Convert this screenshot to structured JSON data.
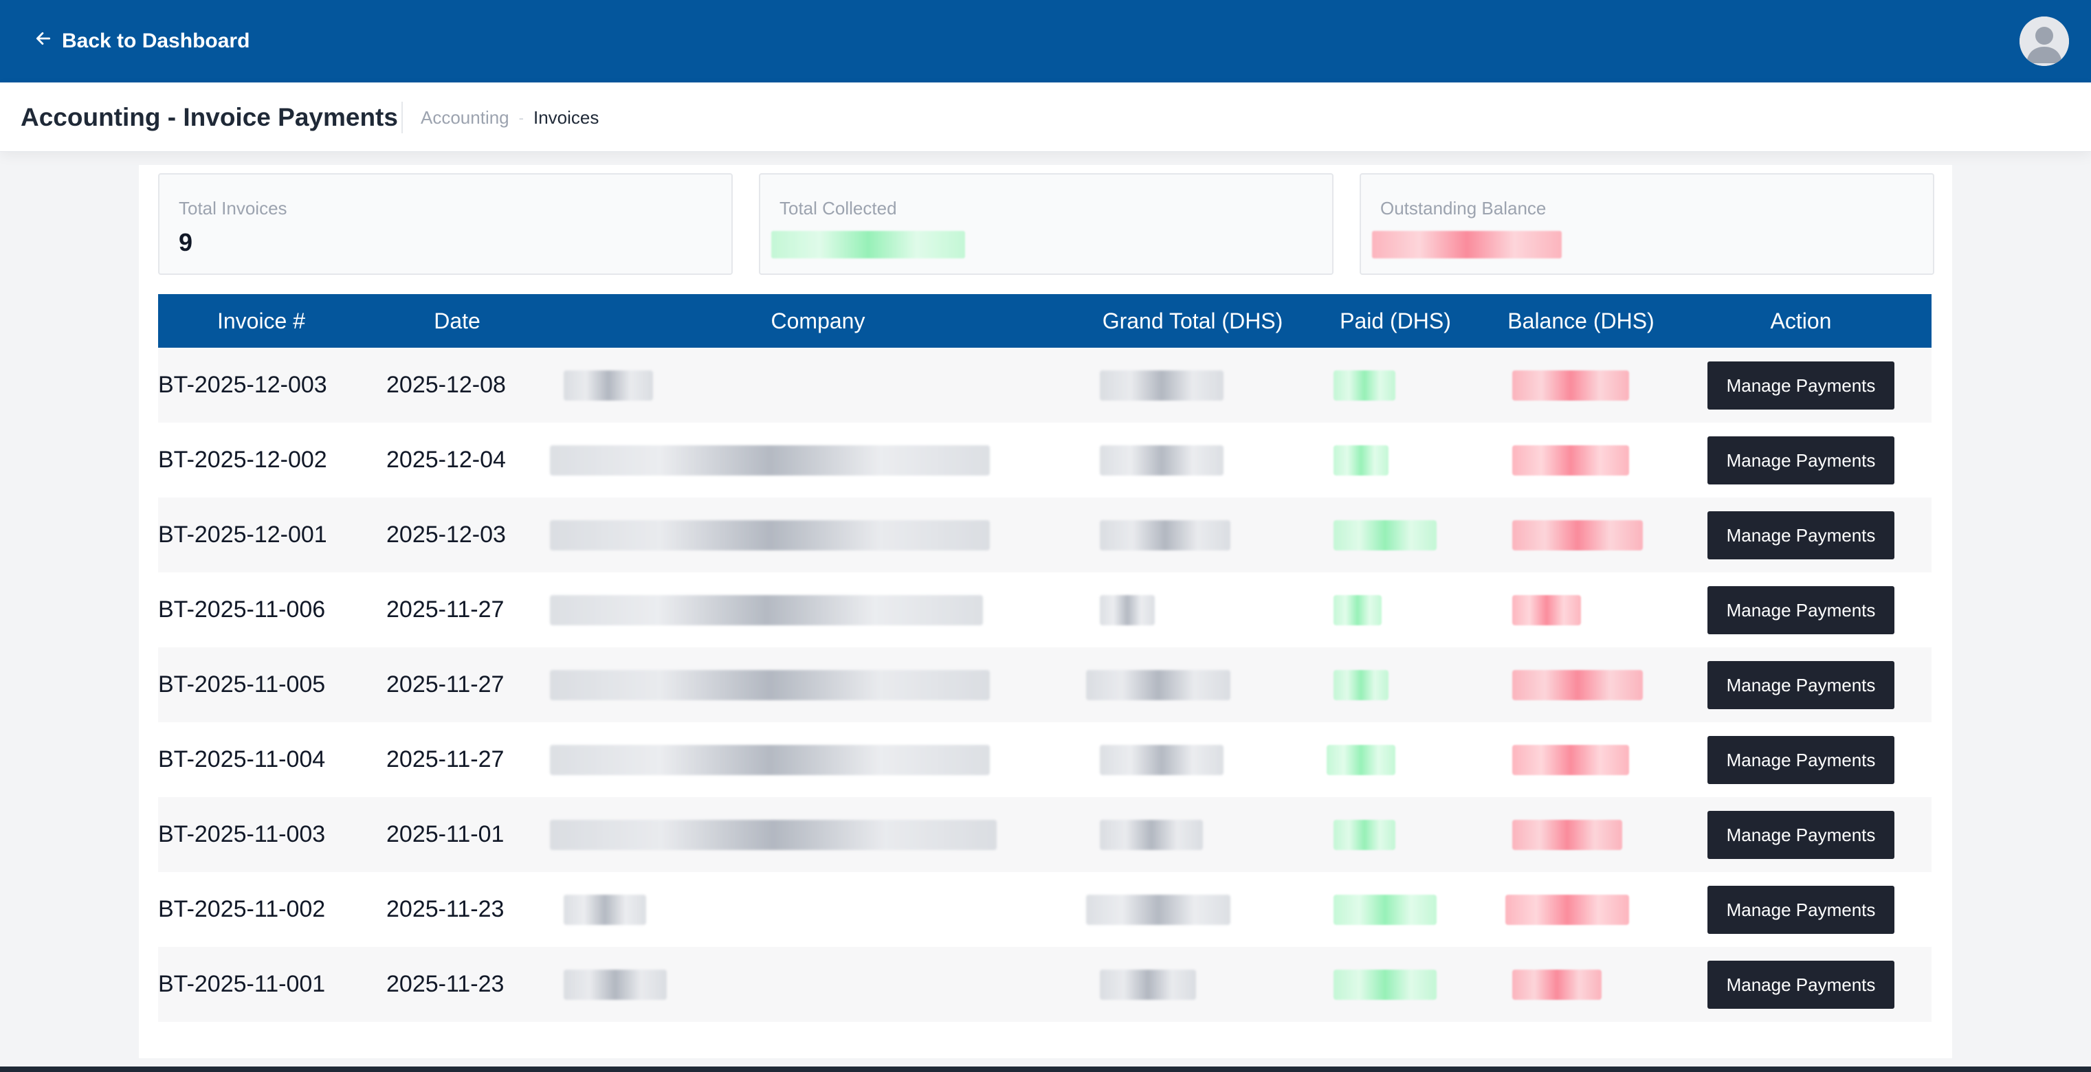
{
  "topbar": {
    "back_label": "Back to Dashboard",
    "back_icon": "arrow-left-icon",
    "avatar_icon": "user-avatar-icon",
    "color": "#04569c"
  },
  "header": {
    "title": "Accounting - Invoice Payments",
    "breadcrumb": [
      "Accounting",
      "Invoices"
    ],
    "breadcrumb_separator": "-"
  },
  "stats": [
    {
      "label": "Total Invoices",
      "value": "9"
    },
    {
      "label": "Total Collected",
      "value": ""
    },
    {
      "label": "Outstanding Balance",
      "value": ""
    }
  ],
  "table": {
    "columns": [
      "Invoice #",
      "Date",
      "Company",
      "Grand Total (DHS)",
      "Paid (DHS)",
      "Balance (DHS)",
      "Action"
    ],
    "action_label": "Manage Payments",
    "rows": [
      {
        "invoice": "BT-2025-12-003",
        "date": "2025-12-08"
      },
      {
        "invoice": "BT-2025-12-002",
        "date": "2025-12-04"
      },
      {
        "invoice": "BT-2025-12-001",
        "date": "2025-12-03"
      },
      {
        "invoice": "BT-2025-11-006",
        "date": "2025-11-27"
      },
      {
        "invoice": "BT-2025-11-005",
        "date": "2025-11-27"
      },
      {
        "invoice": "BT-2025-11-004",
        "date": "2025-11-27"
      },
      {
        "invoice": "BT-2025-11-003",
        "date": "2025-11-01"
      },
      {
        "invoice": "BT-2025-11-002",
        "date": "2025-11-23"
      },
      {
        "invoice": "BT-2025-11-001",
        "date": "2025-11-23"
      }
    ]
  },
  "colors": {
    "header_blue": "#04569c",
    "button_dark": "#1f2430",
    "paid_green": "#86efac",
    "balance_red": "#fb7185"
  }
}
